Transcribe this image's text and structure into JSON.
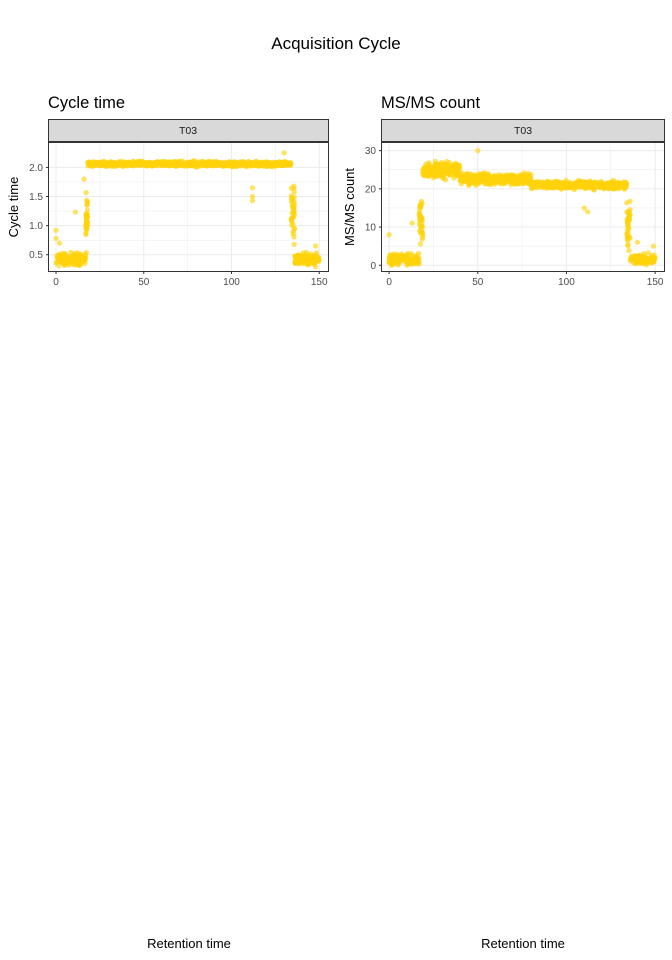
{
  "title": "Acquisition Cycle",
  "colors": {
    "points": "#FFD20A",
    "strip_bg": "#D9D9D9",
    "strip_border": "#333333",
    "grid": "#EBEBEB"
  },
  "chart_data": [
    {
      "type": "scatter",
      "title": "Cycle time",
      "facet": "T03",
      "xlabel": "Retention time",
      "ylabel": "Cycle time",
      "xlim": [
        -4,
        155
      ],
      "ylim": [
        0.22,
        2.42
      ],
      "xticks": [
        0,
        50,
        100,
        150
      ],
      "yticks": [
        0.5,
        1.0,
        1.5,
        2.0
      ],
      "ytick_labels": [
        "0.5",
        "1.0",
        "1.5",
        "2.0"
      ],
      "grid": true,
      "segments": [
        {
          "x_from": 0,
          "x_to": 17,
          "y_center": 0.42,
          "y_spread": 0.3
        },
        {
          "x_from": 17,
          "x_to": 18,
          "y_center": 1.1,
          "y_spread": 1.4
        },
        {
          "x_from": 18,
          "x_to": 134,
          "y_center": 2.06,
          "y_spread": 0.12
        },
        {
          "x_from": 134,
          "x_to": 136,
          "y_center": 1.3,
          "y_spread": 1.6
        },
        {
          "x_from": 136,
          "x_to": 150,
          "y_center": 0.42,
          "y_spread": 0.3
        }
      ],
      "outliers": [
        {
          "x": 0,
          "y": 0.92
        },
        {
          "x": 0,
          "y": 0.78
        },
        {
          "x": 2,
          "y": 0.7
        },
        {
          "x": 11,
          "y": 1.23
        },
        {
          "x": 16,
          "y": 1.8
        },
        {
          "x": 112,
          "y": 1.65
        },
        {
          "x": 112,
          "y": 1.5
        },
        {
          "x": 112,
          "y": 1.43
        },
        {
          "x": 130,
          "y": 2.25
        },
        {
          "x": 136,
          "y": 0.95
        },
        {
          "x": 148,
          "y": 0.65
        }
      ]
    },
    {
      "type": "scatter",
      "title": "MS/MS count",
      "facet": "T03",
      "xlabel": "Retention time",
      "ylabel": "MS/MS count",
      "xlim": [
        -4,
        155
      ],
      "ylim": [
        -1.5,
        32
      ],
      "xticks": [
        0,
        50,
        100,
        150
      ],
      "yticks": [
        0,
        10,
        20,
        30
      ],
      "ytick_labels": [
        "0",
        "10",
        "20",
        "30"
      ],
      "grid": true,
      "segments": [
        {
          "x_from": 0,
          "x_to": 17,
          "y_center": 1.5,
          "y_spread": 4
        },
        {
          "x_from": 17,
          "x_to": 19,
          "y_center": 12,
          "y_spread": 18
        },
        {
          "x_from": 19,
          "x_to": 40,
          "y_center": 25,
          "y_spread": 6
        },
        {
          "x_from": 40,
          "x_to": 80,
          "y_center": 22.5,
          "y_spread": 4
        },
        {
          "x_from": 80,
          "x_to": 134,
          "y_center": 21,
          "y_spread": 3
        },
        {
          "x_from": 134,
          "x_to": 136,
          "y_center": 11,
          "y_spread": 20
        },
        {
          "x_from": 136,
          "x_to": 150,
          "y_center": 1.5,
          "y_spread": 4
        }
      ],
      "outliers": [
        {
          "x": 0,
          "y": 8
        },
        {
          "x": 13,
          "y": 11
        },
        {
          "x": 22,
          "y": 26
        },
        {
          "x": 50,
          "y": 30
        },
        {
          "x": 110,
          "y": 15
        },
        {
          "x": 112,
          "y": 14
        },
        {
          "x": 140,
          "y": 6
        },
        {
          "x": 149,
          "y": 5
        }
      ]
    }
  ]
}
